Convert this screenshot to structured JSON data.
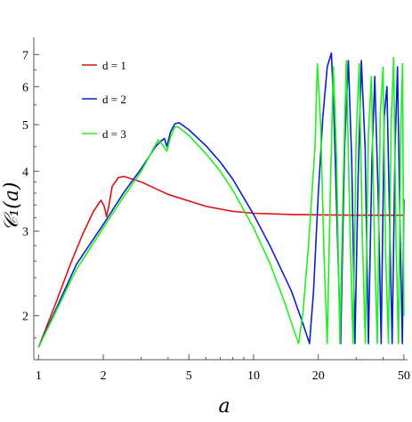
{
  "chart_data": {
    "type": "line",
    "xscale": "log",
    "yscale": "log",
    "xlabel": "a",
    "ylabel": "𝒞₁(a)",
    "xlim": [
      0.95,
      52
    ],
    "ylim": [
      1.62,
      7.6
    ],
    "xticks": [
      1,
      2,
      5,
      10,
      20,
      50
    ],
    "yticks": [
      2,
      3,
      4,
      5,
      6,
      7
    ],
    "grid": false,
    "legend_position": "top-left",
    "series": [
      {
        "name": "d = 1",
        "color": "#e01010",
        "x": [
          1,
          1.2,
          1.4,
          1.6,
          1.8,
          1.95,
          2.02,
          2.07,
          2.12,
          2.2,
          2.35,
          2.5,
          3,
          4,
          6,
          8,
          10,
          15,
          20,
          30,
          40,
          50
        ],
        "y": [
          1.72,
          2.12,
          2.55,
          2.95,
          3.3,
          3.48,
          3.38,
          3.22,
          3.38,
          3.72,
          3.88,
          3.9,
          3.8,
          3.58,
          3.38,
          3.3,
          3.27,
          3.25,
          3.245,
          3.24,
          3.24,
          3.24
        ]
      },
      {
        "name": "d = 2",
        "color": "#0a1fd0",
        "x": [
          1,
          1.5,
          2,
          2.5,
          3,
          3.5,
          3.7,
          3.85,
          3.95,
          4.1,
          4.3,
          4.5,
          5,
          6,
          7,
          8,
          10,
          12,
          15,
          17,
          18.2,
          19,
          20,
          21,
          22,
          23,
          23.6,
          24.5,
          25.4,
          26.5,
          27.6,
          28.6,
          29.6,
          30.6,
          31.7,
          33,
          34.2,
          35.5,
          36.6,
          38,
          39.2,
          40.5,
          41.7,
          43,
          44.1,
          45.5,
          46.7,
          48,
          49.2,
          50
        ],
        "y": [
          1.72,
          2.56,
          3.1,
          3.62,
          4.05,
          4.5,
          4.62,
          4.68,
          4.5,
          4.82,
          5.02,
          5.05,
          4.88,
          4.52,
          4.18,
          3.85,
          3.25,
          2.78,
          2.25,
          1.92,
          1.75,
          2.25,
          3.6,
          5.2,
          6.6,
          7.05,
          5.4,
          3.0,
          1.75,
          4.5,
          6.8,
          4.2,
          1.75,
          3.8,
          6.8,
          4.5,
          1.75,
          4.2,
          6.3,
          3.5,
          1.75,
          5.2,
          6.0,
          3.0,
          1.75,
          4.5,
          6.6,
          3.0,
          1.75,
          3.5
        ]
      },
      {
        "name": "d = 3",
        "color": "#20f020",
        "x": [
          1,
          1.5,
          2,
          2.5,
          3,
          3.6,
          3.8,
          3.95,
          4.1,
          4.3,
          4.45,
          5,
          6,
          7,
          8,
          10,
          12,
          14,
          15.5,
          16.2,
          17,
          18,
          19.3,
          19.8,
          20.5,
          21.3,
          22,
          22.7,
          23.5,
          24.3,
          25.2,
          26.1,
          27,
          28,
          29,
          30,
          31,
          32,
          33.1,
          34.2,
          35.3,
          36.5,
          37.6,
          38.8,
          40,
          41.2,
          42.4,
          43.6,
          44.8,
          46,
          47.2,
          48.4,
          49.3,
          50
        ],
        "y": [
          1.72,
          2.5,
          3.05,
          3.55,
          4.0,
          4.65,
          4.52,
          4.4,
          4.7,
          4.95,
          4.95,
          4.75,
          4.35,
          4.0,
          3.65,
          3.05,
          2.55,
          2.12,
          1.85,
          1.75,
          2.05,
          2.8,
          4.5,
          6.7,
          5.0,
          2.6,
          1.75,
          3.5,
          6.6,
          4.3,
          1.75,
          3.8,
          6.8,
          3.2,
          1.75,
          4.7,
          6.7,
          3.0,
          1.75,
          4.8,
          6.3,
          2.8,
          1.75,
          5.2,
          6.6,
          2.6,
          1.75,
          5.0,
          6.9,
          2.8,
          1.75,
          5.0,
          6.7,
          2.0
        ]
      }
    ]
  }
}
